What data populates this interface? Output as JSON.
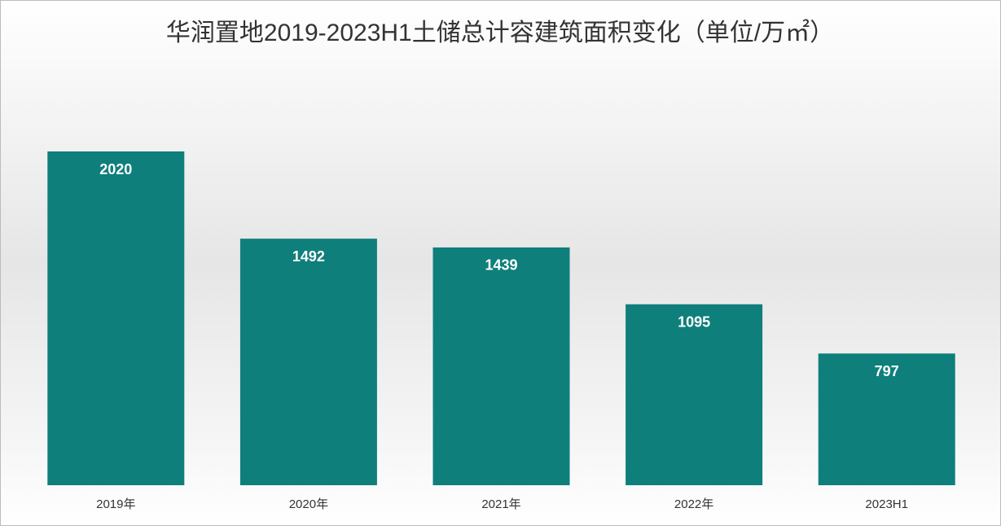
{
  "chart_data": {
    "type": "bar",
    "title": "华润置地2019-2023H1土储总计容建筑面积变化（单位/万㎡）",
    "categories": [
      "2019年",
      "2020年",
      "2021年",
      "2022年",
      "2023H1"
    ],
    "values": [
      2020,
      1492,
      1439,
      1095,
      797
    ],
    "color": "#0f7f7b"
  }
}
